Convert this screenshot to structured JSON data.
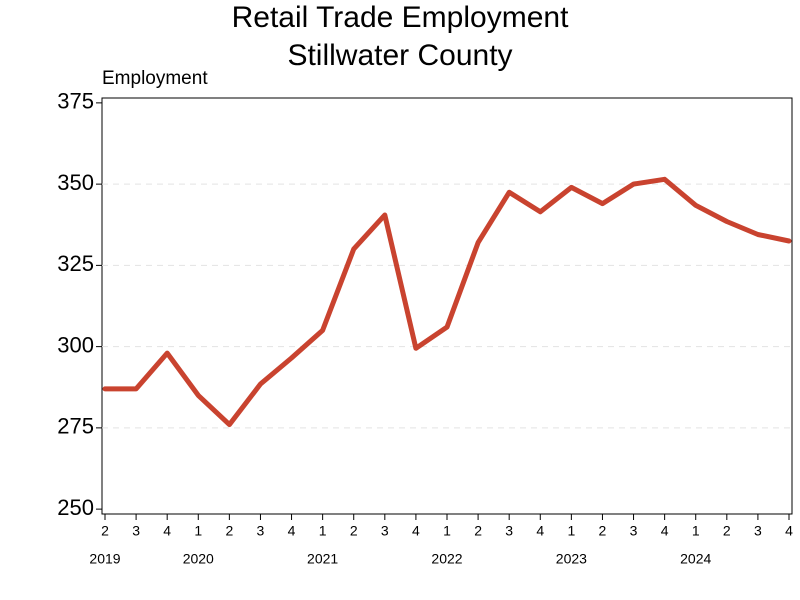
{
  "chart_data": {
    "type": "line",
    "title": "Retail Trade Employment",
    "subtitle": "Stillwater County",
    "y_label": "Employment",
    "categories": [
      "2",
      "3",
      "4",
      "1",
      "2",
      "3",
      "4",
      "1",
      "2",
      "3",
      "4",
      "1",
      "2",
      "3",
      "4",
      "1",
      "2",
      "3",
      "4",
      "1",
      "2",
      "3",
      "4"
    ],
    "year_labels": [
      "2019",
      null,
      null,
      "2020",
      null,
      null,
      null,
      "2021",
      null,
      null,
      null,
      "2022",
      null,
      null,
      null,
      "2023",
      null,
      null,
      null,
      "2024",
      null,
      null,
      null
    ],
    "series": [
      {
        "name": "Employment",
        "color": "#c9432f",
        "values": [
          287,
          287,
          298,
          285,
          276,
          288.5,
          296.5,
          305,
          330,
          340.5,
          299.5,
          306,
          332,
          347.5,
          341.5,
          349,
          344,
          350,
          351.5,
          343.5,
          338.5,
          334.5,
          332.5
        ]
      }
    ],
    "ylim": [
      248.5,
      376.5
    ],
    "yticks": [
      250,
      275,
      300,
      325,
      350,
      375
    ],
    "grid": true
  }
}
